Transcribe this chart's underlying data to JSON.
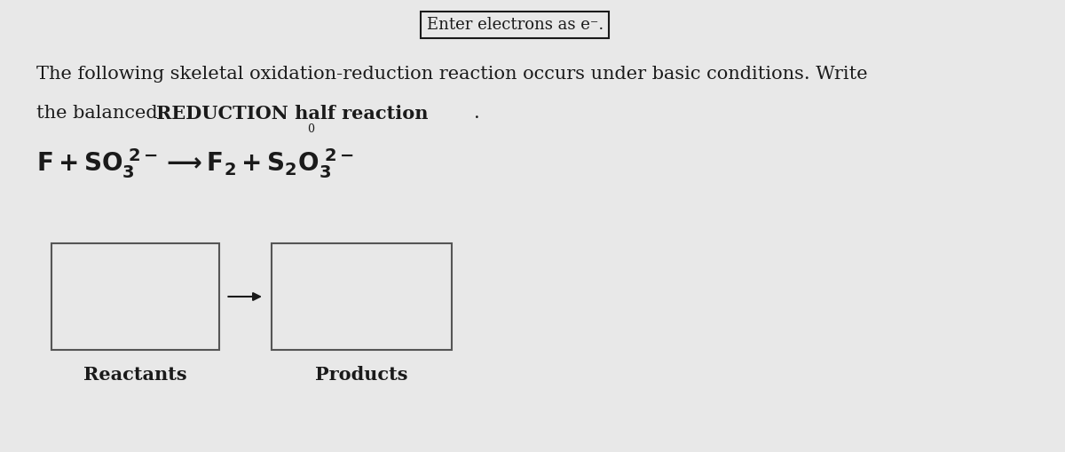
{
  "bg_color": "#e8e8e8",
  "title_box_text": "Enter electrons as e⁻.",
  "paragraph_line1": "The following skeletal oxidation-reduction reaction occurs under basic conditions. Write",
  "paragraph_line2_normal": "the balanced ",
  "paragraph_line2_bold": "REDUCTION half reaction",
  "paragraph_line2_end": ".",
  "reactants_label": "Reactants",
  "products_label": "Products",
  "box_facecolor": "#e8e8e8",
  "box_edge_color": "#555555",
  "text_color": "#1a1a1a",
  "font_size_title": 13,
  "font_size_main": 15,
  "font_size_reaction": 20,
  "font_size_labels": 15,
  "font_size_small": 9
}
